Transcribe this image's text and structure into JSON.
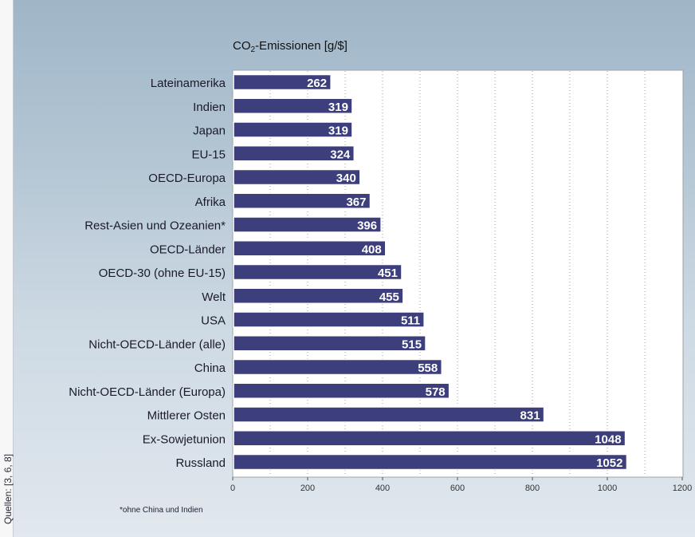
{
  "source_note": "Quellen: [3, 6, 8]",
  "footnote": "*ohne China und Indien",
  "chart_data": {
    "type": "bar",
    "orientation": "horizontal",
    "title": "CO2-Emissionen [g/$]",
    "categories": [
      "Lateinamerika",
      "Indien",
      "Japan",
      "EU-15",
      "OECD-Europa",
      "Afrika",
      "Rest-Asien und Ozeanien*",
      "OECD-Länder",
      "OECD-30 (ohne EU-15)",
      "Welt",
      "USA",
      "Nicht-OECD-Länder (alle)",
      "China",
      "Nicht-OECD-Länder (Europa)",
      "Mittlerer Osten",
      "Ex-Sowjetunion",
      "Russland"
    ],
    "values": [
      262,
      319,
      319,
      324,
      340,
      367,
      396,
      408,
      451,
      455,
      511,
      515,
      558,
      578,
      831,
      1048,
      1052
    ],
    "xlim": [
      0,
      1200
    ],
    "xticks": [
      0,
      200,
      400,
      600,
      800,
      1000,
      1200
    ],
    "grid": "vertical dotted",
    "bar_color": "#3d3f7c",
    "label_color": "#ffffff"
  }
}
